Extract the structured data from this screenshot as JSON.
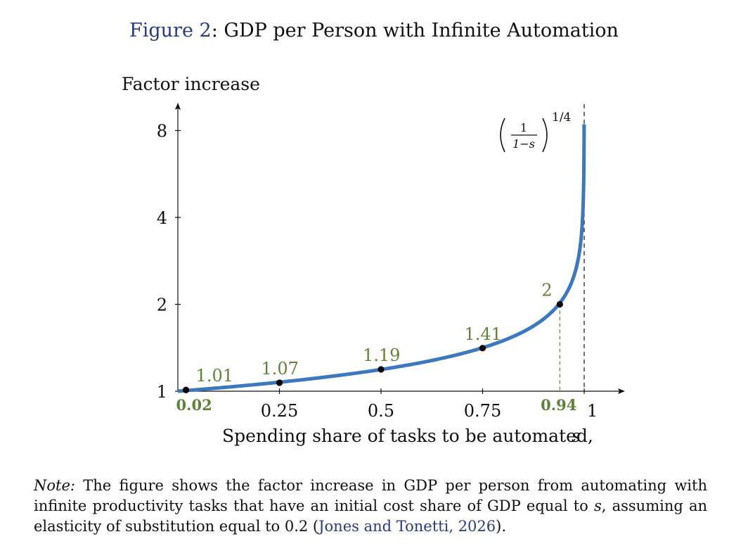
{
  "figure": {
    "label": "Figure 2",
    "title": "GDP per Person with Infinite Automation"
  },
  "note": {
    "label": "Note:",
    "text_before_s": "The figure shows the factor increase in GDP per person from automating with infinite productivity tasks that have an initial cost share of GDP equal to",
    "s_symbol": "s",
    "text_after_s": ", assuming an elasticity of substitution equal to 0.2 (",
    "citation_authors": "Jones and Tonetti",
    "citation_year": "2026",
    "text_end": ")."
  },
  "colors": {
    "curve": "#3a78bf",
    "annotation": "#5f8436",
    "link": "#283a87",
    "text": "#111111",
    "point": "#000000"
  },
  "chart_data": {
    "type": "line",
    "title": "",
    "xlabel": "Spending share of tasks to be automated,",
    "xlabel_symbol": "s",
    "ylabel": "Factor increase",
    "x_scale": "linear",
    "y_scale": "log2",
    "xlim": [
      0,
      1.1
    ],
    "ylim": [
      1,
      9.5
    ],
    "grid": false,
    "x_ticks": [
      {
        "value": 0.25,
        "label": "0.25"
      },
      {
        "value": 0.5,
        "label": "0.5"
      },
      {
        "value": 0.75,
        "label": "0.75"
      },
      {
        "value": 1,
        "label": "1"
      }
    ],
    "y_ticks": [
      {
        "value": 1,
        "label": "1"
      },
      {
        "value": 2,
        "label": "2"
      },
      {
        "value": 4,
        "label": "4"
      },
      {
        "value": 8,
        "label": "8"
      }
    ],
    "series": [
      {
        "formula": "y = (1/(1-s))^(1/4)",
        "exponent": 0.25,
        "x_domain": [
          0,
          0.9998
        ],
        "formula_label": {
          "numerator": "1",
          "denominator": "1−s",
          "exponent": "1/4"
        }
      }
    ],
    "points": [
      {
        "x": 0.02,
        "y": 1.01,
        "label": "1.01"
      },
      {
        "x": 0.25,
        "y": 1.07,
        "label": "1.07"
      },
      {
        "x": 0.5,
        "y": 1.19,
        "label": "1.19"
      },
      {
        "x": 0.75,
        "y": 1.41,
        "label": "1.41"
      },
      {
        "x": 0.94,
        "y": 2,
        "label": "2"
      }
    ],
    "highlighted_x": [
      {
        "value": 0.02,
        "label": "0.02"
      },
      {
        "value": 0.94,
        "label": "0.94"
      }
    ],
    "asymptote_x": 1
  }
}
